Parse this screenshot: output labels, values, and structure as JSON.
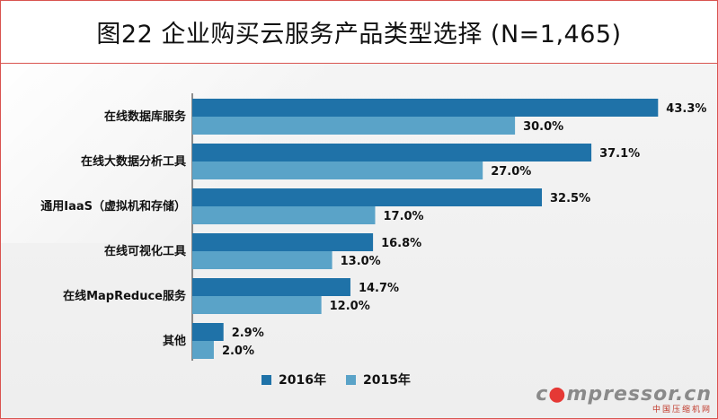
{
  "title": "图22 企业购买云服务产品类型选择 (N=1,465)",
  "chart_data": {
    "type": "bar",
    "orientation": "horizontal",
    "categories": [
      "在线数据库服务",
      "在线大数据分析工具",
      "通用IaaS（虚拟机和存储）",
      "在线可视化工具",
      "在线MapReduce服务",
      "其他"
    ],
    "series": [
      {
        "name": "2016年",
        "values": [
          43.3,
          37.1,
          32.5,
          16.8,
          14.7,
          2.9
        ],
        "labels": [
          "43.3%",
          "37.1%",
          "32.5%",
          "16.8%",
          "14.7%",
          "2.9%"
        ],
        "color": "#1f72a8"
      },
      {
        "name": "2015年",
        "values": [
          30.0,
          27.0,
          17.0,
          13.0,
          12.0,
          2.0
        ],
        "labels": [
          "30.0%",
          "27.0%",
          "17.0%",
          "13.0%",
          "12.0%",
          "2.0%"
        ],
        "color": "#5aa3c8"
      }
    ],
    "xlim": [
      0,
      45
    ],
    "grid": false,
    "legend_position": "bottom"
  },
  "watermark": {
    "main_prefix": "c",
    "main_suffix": "mpressor",
    "main_tld": "cn",
    "sub": "中国压缩机网"
  },
  "colors": {
    "border": "#d9534f",
    "axis": "#222222"
  }
}
